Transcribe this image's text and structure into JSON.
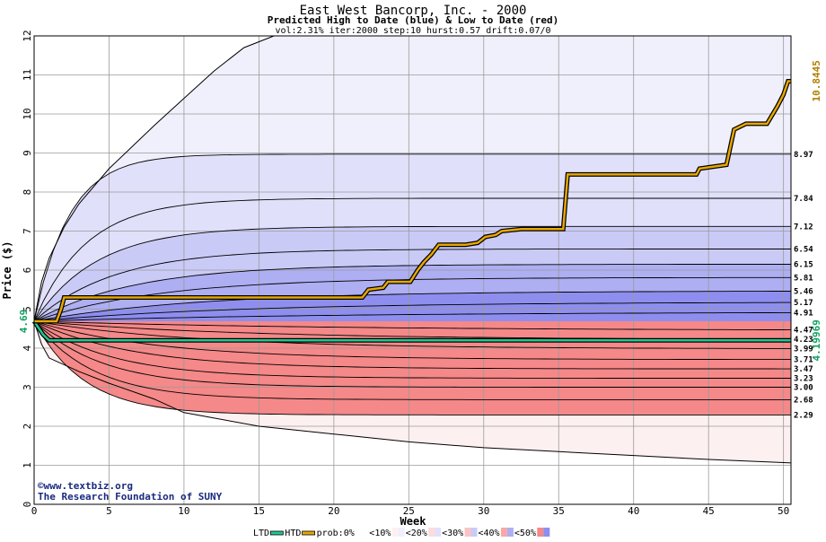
{
  "header": {
    "title": "East West Bancorp, Inc. - 2000",
    "subtitle": "Predicted High to Date (blue) &  Low to Date (red)",
    "params": "vol:2.31% iter:2000 step:10 hurst:0.57 drift:0.07/0"
  },
  "credits": {
    "copyright": "©www.textbiz.org",
    "org": "The Research Foundation of SUNY"
  },
  "legend": {
    "ltd": "LTD",
    "htd": "HTD",
    "prob": "prob:0%",
    "items": [
      "<10%",
      "<20%",
      "<30%",
      "<40%",
      "<50%"
    ]
  },
  "colors": {
    "htd_line": "#e8a800",
    "ltd_line": "#20c890",
    "blue_bands": [
      "#f0f0fc",
      "#e0e0fa",
      "#cacaf7",
      "#aeaef3",
      "#8e8eee"
    ],
    "red_bands": [
      "#fdf0f0",
      "#fcdcdc",
      "#fbc4c4",
      "#f8a8a8",
      "#f58888"
    ],
    "right_label_high": "#b08000",
    "right_label_low": "#10a060",
    "start_label": "#10a060"
  },
  "chart_data": {
    "type": "area",
    "title": "East West Bancorp, Inc. - 2000",
    "subtitle": "Predicted High to Date (blue) &  Low to Date (red)",
    "xlabel": "Week",
    "ylabel": "Price ($)",
    "xlim": [
      0,
      50.5
    ],
    "ylim": [
      0,
      12
    ],
    "x_ticks": [
      0,
      5,
      10,
      15,
      20,
      25,
      30,
      35,
      40,
      45,
      50
    ],
    "y_ticks": [
      0,
      1,
      2,
      3,
      4,
      5,
      6,
      7,
      8,
      9,
      10,
      11,
      12
    ],
    "grid": true,
    "start_price": 4.69,
    "start_label": "4.69",
    "final_high": 10.8445,
    "final_high_label": "10.8445",
    "final_low": 4.19969,
    "final_low_label": "4.19969",
    "high_contours": [
      {
        "end": 8.97,
        "label": "8.97",
        "k": 0.43
      },
      {
        "end": 7.84,
        "label": "7.84",
        "k": 0.29
      },
      {
        "end": 7.12,
        "label": "7.12",
        "k": 0.24
      },
      {
        "end": 6.54,
        "label": "6.54",
        "k": 0.19
      },
      {
        "end": 6.15,
        "label": "6.15",
        "k": 0.15
      },
      {
        "end": 5.81,
        "label": "5.81",
        "k": 0.12
      },
      {
        "end": 5.46,
        "label": "5.46",
        "k": 0.09
      },
      {
        "end": 5.17,
        "label": "5.17",
        "k": 0.07
      },
      {
        "end": 4.91,
        "label": "4.91",
        "k": 0.05
      }
    ],
    "low_contours": [
      {
        "end": 4.47,
        "label": "4.47",
        "k": 0.05
      },
      {
        "end": 4.23,
        "label": "4.23",
        "k": 0.07
      },
      {
        "end": 3.99,
        "label": "3.99",
        "k": 0.09
      },
      {
        "end": 3.71,
        "label": "3.71",
        "k": 0.12
      },
      {
        "end": 3.47,
        "label": "3.47",
        "k": 0.15
      },
      {
        "end": 3.23,
        "label": "3.23",
        "k": 0.19
      },
      {
        "end": 3.0,
        "label": "3.00",
        "k": 0.22
      },
      {
        "end": 2.68,
        "label": "2.68",
        "k": 0.25
      },
      {
        "end": 2.29,
        "label": "2.29",
        "k": 0.3
      }
    ],
    "outer_high_envelope": [
      [
        0,
        4.69
      ],
      [
        0.5,
        5.7
      ],
      [
        1,
        6.3
      ],
      [
        2,
        7.1
      ],
      [
        3,
        7.7
      ],
      [
        5,
        8.6
      ],
      [
        8,
        9.7
      ],
      [
        10,
        10.4
      ],
      [
        12,
        11.1
      ],
      [
        14,
        11.7
      ],
      [
        16,
        12.2
      ]
    ],
    "outer_low_envelope": [
      [
        0,
        4.69
      ],
      [
        0.5,
        4.1
      ],
      [
        1,
        3.75
      ],
      [
        3,
        3.4
      ],
      [
        5,
        3.1
      ],
      [
        8,
        2.7
      ],
      [
        10,
        2.35
      ],
      [
        15,
        2.0
      ],
      [
        20,
        1.8
      ],
      [
        25,
        1.6
      ],
      [
        30,
        1.45
      ],
      [
        35,
        1.35
      ],
      [
        40,
        1.25
      ],
      [
        45,
        1.15
      ],
      [
        50,
        1.07
      ],
      [
        50.5,
        1.06
      ]
    ],
    "htd_series": [
      [
        0,
        4.69
      ],
      [
        1.5,
        4.69
      ],
      [
        1.8,
        5.0
      ],
      [
        2,
        5.3
      ],
      [
        21.9,
        5.3
      ],
      [
        22.3,
        5.5
      ],
      [
        23.3,
        5.55
      ],
      [
        23.6,
        5.7
      ],
      [
        25.1,
        5.7
      ],
      [
        25.6,
        6.0
      ],
      [
        26,
        6.2
      ],
      [
        26.5,
        6.4
      ],
      [
        27,
        6.65
      ],
      [
        28.8,
        6.65
      ],
      [
        29.6,
        6.7
      ],
      [
        30.1,
        6.85
      ],
      [
        30.8,
        6.9
      ],
      [
        31.2,
        7.0
      ],
      [
        32.5,
        7.05
      ],
      [
        35.3,
        7.05
      ],
      [
        35.6,
        8.45
      ],
      [
        44.2,
        8.45
      ],
      [
        44.4,
        8.6
      ],
      [
        46.2,
        8.7
      ],
      [
        46.7,
        9.6
      ],
      [
        47.5,
        9.75
      ],
      [
        48.9,
        9.75
      ],
      [
        49.6,
        10.2
      ],
      [
        50,
        10.5
      ],
      [
        50.3,
        10.84
      ],
      [
        50.5,
        10.84
      ]
    ],
    "ltd_series": [
      [
        0,
        4.69
      ],
      [
        0.6,
        4.35
      ],
      [
        1,
        4.2
      ],
      [
        50.5,
        4.2
      ]
    ]
  }
}
